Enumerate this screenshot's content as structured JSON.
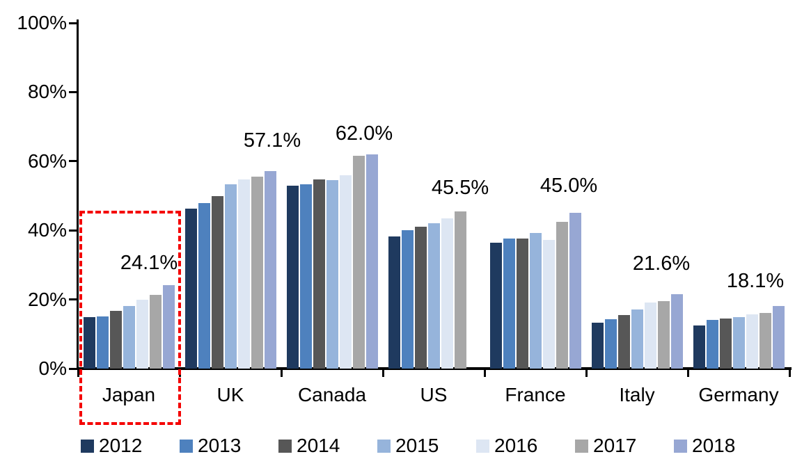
{
  "chart_data": {
    "type": "bar",
    "title": "",
    "xlabel": "",
    "ylabel": "",
    "categories": [
      "Japan",
      "UK",
      "Canada",
      "US",
      "France",
      "Italy",
      "Germany"
    ],
    "series": [
      {
        "name": "2012",
        "color": "#1F3A5F",
        "values": [
          14.8,
          46.3,
          52.9,
          38.2,
          36.5,
          13.3,
          12.5
        ]
      },
      {
        "name": "2013",
        "color": "#4E81BE",
        "values": [
          15.0,
          47.8,
          53.4,
          40.0,
          37.6,
          14.2,
          14.0
        ]
      },
      {
        "name": "2014",
        "color": "#575757",
        "values": [
          16.7,
          50.0,
          54.8,
          41.0,
          37.6,
          15.5,
          14.5
        ]
      },
      {
        "name": "2015",
        "color": "#96B4DB",
        "values": [
          18.1,
          53.3,
          54.5,
          42.0,
          39.3,
          17.1,
          14.9
        ]
      },
      {
        "name": "2016",
        "color": "#DDE6F3",
        "values": [
          20.0,
          54.7,
          56.0,
          43.5,
          37.3,
          19.2,
          15.6
        ]
      },
      {
        "name": "2017",
        "color": "#A7A7A7",
        "values": [
          21.3,
          55.6,
          61.6,
          45.5,
          42.4,
          19.5,
          16.1
        ]
      },
      {
        "name": "2018",
        "color": "#97A7D3",
        "values": [
          24.1,
          57.1,
          62.0,
          null,
          45.0,
          21.6,
          18.1
        ]
      }
    ],
    "data_labels": [
      "24.1%",
      "57.1%",
      "62.0%",
      "45.5%",
      "45.0%",
      "21.6%",
      "18.1%"
    ],
    "yticks": [
      "0%",
      "20%",
      "40%",
      "60%",
      "80%",
      "100%"
    ],
    "ylim": [
      0,
      100
    ],
    "grid": false,
    "legend_position": "bottom",
    "highlight": {
      "target": "Japan",
      "color": "#F40000",
      "style": "dashed-box"
    },
    "layout_hints": {
      "label_dx": [
        -28,
        3,
        -11,
        0,
        -9,
        -22,
        -33
      ],
      "label_gap": [
        16,
        28,
        14,
        18,
        23,
        28,
        20
      ]
    }
  }
}
